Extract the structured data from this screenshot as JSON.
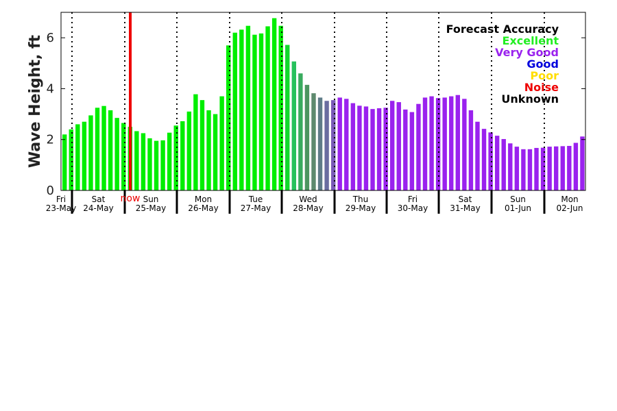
{
  "chart_data": {
    "type": "bar",
    "ylabel": "Wave Height, ft",
    "ylim": [
      0,
      7
    ],
    "yticks": [
      0,
      2,
      4,
      6
    ],
    "grid": false,
    "days": [
      {
        "weekday": "Fri",
        "date": "23-May"
      },
      {
        "weekday": "Sat",
        "date": "24-May"
      },
      {
        "weekday": "Sun",
        "date": "25-May"
      },
      {
        "weekday": "Mon",
        "date": "26-May"
      },
      {
        "weekday": "Tue",
        "date": "27-May"
      },
      {
        "weekday": "Wed",
        "date": "28-May"
      },
      {
        "weekday": "Thu",
        "date": "29-May"
      },
      {
        "weekday": "Fri",
        "date": "30-May"
      },
      {
        "weekday": "Sat",
        "date": "31-May"
      },
      {
        "weekday": "Sun",
        "date": "01-Jun"
      },
      {
        "weekday": "Mon",
        "date": "02-Jun"
      }
    ],
    "now_marker": {
      "label": "now",
      "color": "#ee0000"
    },
    "values": [
      2.2,
      2.4,
      2.6,
      2.7,
      2.95,
      3.25,
      3.32,
      3.15,
      2.85,
      2.65,
      2.5,
      2.33,
      2.25,
      2.05,
      1.95,
      1.97,
      2.27,
      2.55,
      2.72,
      3.1,
      3.78,
      3.55,
      3.15,
      3.0,
      3.7,
      5.7,
      6.2,
      6.32,
      6.47,
      6.12,
      6.17,
      6.45,
      6.77,
      6.47,
      5.72,
      5.07,
      4.6,
      4.15,
      3.82,
      3.65,
      3.52,
      3.55,
      3.65,
      3.6,
      3.43,
      3.33,
      3.3,
      3.2,
      3.23,
      3.25,
      3.52,
      3.47,
      3.18,
      3.08,
      3.4,
      3.65,
      3.7,
      3.63,
      3.65,
      3.7,
      3.75,
      3.6,
      3.15,
      2.7,
      2.42,
      2.28,
      2.15,
      2.02,
      1.85,
      1.72,
      1.62,
      1.62,
      1.67,
      1.68,
      1.72,
      1.73,
      1.74,
      1.75,
      1.87,
      2.12
    ],
    "bar_colors": [
      "#00ee00",
      "#00ee00",
      "#00ee00",
      "#00ee00",
      "#00ee00",
      "#00ee00",
      "#00ee00",
      "#00ee00",
      "#00ee00",
      "#00ee00",
      "#00ee00",
      "#00ee00",
      "#00ee00",
      "#00ee00",
      "#00ee00",
      "#00ee00",
      "#00ee00",
      "#00ee00",
      "#00ee00",
      "#00ee00",
      "#00ee00",
      "#00ee00",
      "#00ee00",
      "#00ee00",
      "#00ee00",
      "#00ee00",
      "#00ee00",
      "#00ee00",
      "#00ee00",
      "#00ee00",
      "#00ee00",
      "#00ee00",
      "#00ee00",
      "#00ee00",
      "#13d82e",
      "#26c15c",
      "#39ab5e",
      "#4c9560",
      "#5e8a6e",
      "#5f7c88",
      "#6a6da0",
      "#7a5bb8",
      "#9a22ee",
      "#9a22ee",
      "#9a22ee",
      "#9a22ee",
      "#9a22ee",
      "#9a22ee",
      "#9a22ee",
      "#9a22ee",
      "#9a22ee",
      "#9a22ee",
      "#9a22ee",
      "#9a22ee",
      "#9a22ee",
      "#9a22ee",
      "#9a22ee",
      "#9a22ee",
      "#9a22ee",
      "#9a22ee",
      "#9a22ee",
      "#9a22ee",
      "#9a22ee",
      "#9a22ee",
      "#9a22ee",
      "#9a22ee",
      "#9a22ee",
      "#9a22ee",
      "#9a22ee",
      "#9a22ee",
      "#9a22ee",
      "#9a22ee",
      "#9a22ee",
      "#9a22ee",
      "#9a22ee",
      "#9a22ee",
      "#9a22ee",
      "#9a22ee",
      "#9a22ee",
      "#9a22ee"
    ],
    "legend": {
      "placement": "top-right",
      "title": "Forecast Accuracy",
      "items": [
        {
          "label": "Excellent",
          "color": "#22ee22"
        },
        {
          "label": "Very Good",
          "color": "#9a22ee"
        },
        {
          "label": "Good",
          "color": "#0000dd"
        },
        {
          "label": "Poor",
          "color": "#ffdd00"
        },
        {
          "label": "Noise",
          "color": "#ee0000"
        },
        {
          "label": "Unknown",
          "color": "#000000"
        }
      ]
    }
  }
}
